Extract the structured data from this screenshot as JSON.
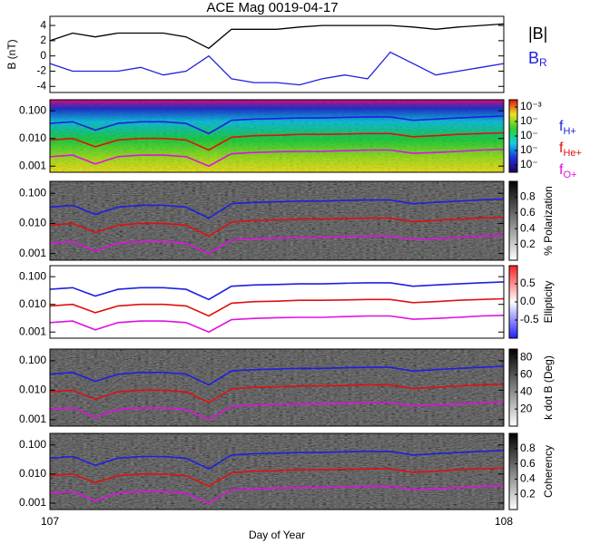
{
  "chart_data": [
    {
      "type": "line",
      "title": "ACE Mag 0019-04-17",
      "ylabel": "B (nT)",
      "x": [
        107.0,
        107.05,
        107.1,
        107.15,
        107.2,
        107.25,
        107.3,
        107.35,
        107.4,
        107.45,
        107.5,
        107.55,
        107.6,
        107.65,
        107.7,
        107.75,
        107.8,
        107.85,
        107.9,
        107.95,
        108.0
      ],
      "series": [
        {
          "name": "|B|",
          "color": "#000000",
          "values": [
            2,
            3,
            2.5,
            3,
            3,
            3,
            2.5,
            1,
            3.5,
            3.5,
            3.5,
            3.8,
            4,
            4,
            4,
            4,
            3.8,
            3.5,
            3.8,
            4,
            4.2
          ]
        },
        {
          "name": "BR",
          "color": "#1f1fe0",
          "values": [
            -1,
            -2,
            -2,
            -2,
            -1.5,
            -2.5,
            -2,
            0,
            -3,
            -3.5,
            -3.5,
            -3.8,
            -3,
            -2.5,
            -3,
            0.5,
            -1,
            -2.5,
            -2,
            -1.5,
            -1
          ]
        }
      ],
      "ylim": [
        -4.8,
        5.2
      ],
      "yticks": [
        -4,
        -2,
        0,
        2,
        4
      ]
    },
    {
      "type": "spectrogram",
      "colormap": "rainbow",
      "log_y": true,
      "x": [
        107.0,
        107.05,
        107.1,
        107.15,
        107.2,
        107.25,
        107.3,
        107.35,
        107.4,
        107.45,
        107.5,
        107.55,
        107.6,
        107.65,
        107.7,
        107.75,
        107.8,
        107.85,
        107.9,
        107.95,
        108.0
      ],
      "series": [
        {
          "name": "fH+",
          "color": "#1f1fe0",
          "values": [
            0.035,
            0.04,
            0.02,
            0.035,
            0.04,
            0.04,
            0.035,
            0.015,
            0.045,
            0.05,
            0.052,
            0.055,
            0.055,
            0.058,
            0.06,
            0.06,
            0.045,
            0.05,
            0.055,
            0.06,
            0.065
          ]
        },
        {
          "name": "fHe+",
          "color": "#e01010",
          "values": [
            0.0088,
            0.01,
            0.005,
            0.0088,
            0.01,
            0.01,
            0.0088,
            0.0038,
            0.011,
            0.0125,
            0.013,
            0.014,
            0.014,
            0.0145,
            0.015,
            0.015,
            0.0115,
            0.0125,
            0.014,
            0.015,
            0.016
          ]
        },
        {
          "name": "fO+",
          "color": "#e010e0",
          "values": [
            0.0022,
            0.0025,
            0.0012,
            0.0022,
            0.0025,
            0.0025,
            0.0022,
            0.001,
            0.0028,
            0.0031,
            0.0033,
            0.0034,
            0.0034,
            0.0036,
            0.0038,
            0.0038,
            0.0029,
            0.0031,
            0.0034,
            0.0038,
            0.004
          ]
        }
      ],
      "ylim": [
        0.0006,
        0.25
      ],
      "yticks": [
        {
          "value": 0.001,
          "label": "0.001"
        },
        {
          "value": 0.01,
          "label": "0.010"
        },
        {
          "value": 0.1,
          "label": "0.100"
        }
      ],
      "clim": [
        -7.5,
        -2.5
      ],
      "cticks": [
        {
          "value": -3,
          "label": "10⁻³"
        },
        {
          "value": -4,
          "label": "10⁻"
        },
        {
          "value": -5,
          "label": "10⁻"
        },
        {
          "value": -6,
          "label": "10⁻"
        },
        {
          "value": -7,
          "label": "10⁻"
        }
      ]
    },
    {
      "type": "spectrogram",
      "colormap": "gray",
      "log_y": true,
      "clabel": "% Polarization",
      "ylim": [
        0.0006,
        0.25
      ],
      "yticks": [
        {
          "value": 0.001,
          "label": "0.001"
        },
        {
          "value": 0.01,
          "label": "0.010"
        },
        {
          "value": 0.1,
          "label": "0.100"
        }
      ],
      "clim": [
        0,
        1
      ],
      "cticks": [
        0.2,
        0.4,
        0.6,
        0.8
      ]
    },
    {
      "type": "spectrogram",
      "colormap": "bwr",
      "log_y": true,
      "clabel": "Ellipticity",
      "ylim": [
        0.0006,
        0.25
      ],
      "yticks": [
        {
          "value": 0.001,
          "label": "0.001"
        },
        {
          "value": 0.01,
          "label": "0.010"
        },
        {
          "value": 0.1,
          "label": "0.100"
        }
      ],
      "clim": [
        -1,
        1
      ],
      "cticks": [
        -0.5,
        {
          "value": 0,
          "label": "0.0"
        },
        0.5
      ]
    },
    {
      "type": "spectrogram",
      "colormap": "gray",
      "log_y": true,
      "clabel": "k dot B (Deg)",
      "ylim": [
        0.0006,
        0.25
      ],
      "yticks": [
        {
          "value": 0.001,
          "label": "0.001"
        },
        {
          "value": 0.01,
          "label": "0.010"
        },
        {
          "value": 0.1,
          "label": "0.100"
        }
      ],
      "clim": [
        0,
        90
      ],
      "cticks": [
        20,
        40,
        60,
        80
      ]
    },
    {
      "type": "spectrogram",
      "colormap": "gray",
      "log_y": true,
      "clabel": "Coherency",
      "ylim": [
        0.0006,
        0.25
      ],
      "yticks": [
        {
          "value": 0.001,
          "label": "0.001"
        },
        {
          "value": 0.01,
          "label": "0.010"
        },
        {
          "value": 0.1,
          "label": "0.100"
        }
      ],
      "clim": [
        0,
        1
      ],
      "cticks": [
        0.2,
        0.4,
        0.6,
        0.8
      ],
      "xlabel": "Day of Year",
      "xlim": [
        107,
        108
      ],
      "xticks": [
        107,
        108
      ]
    }
  ]
}
